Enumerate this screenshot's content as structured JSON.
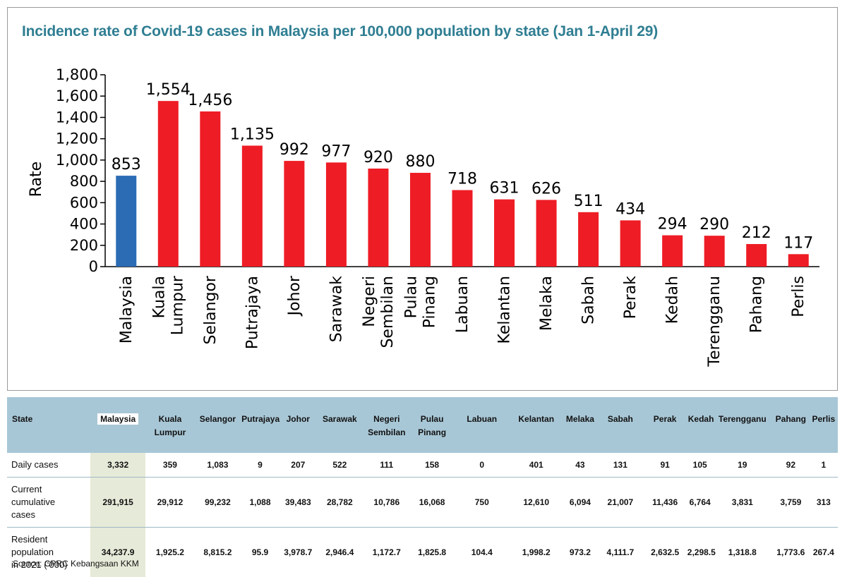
{
  "title": "Incidence rate of Covid-19 cases in Malaysia per 100,000 population by state (Jan 1-April 29)",
  "chart_data": {
    "type": "bar",
    "title": "Incidence rate of Covid-19 cases in Malaysia per 100,000 population by state (Jan 1-April 29)",
    "ylabel": "Rate",
    "xlabel": "",
    "ylim": [
      0,
      1800
    ],
    "yticks": [
      "0",
      "200",
      "400",
      "600",
      "800",
      "1,000",
      "1,200",
      "1,400",
      "1,600",
      "1,800"
    ],
    "categories": [
      [
        "Malaysia"
      ],
      [
        "Kuala",
        "Lumpur"
      ],
      [
        "Selangor"
      ],
      [
        "Putrajaya"
      ],
      [
        "Johor"
      ],
      [
        "Sarawak"
      ],
      [
        "Negeri",
        "Sembilan"
      ],
      [
        "Pulau",
        "Pinang"
      ],
      [
        "Labuan"
      ],
      [
        "Kelantan"
      ],
      [
        "Melaka"
      ],
      [
        "Sabah"
      ],
      [
        "Perak"
      ],
      [
        "Kedah"
      ],
      [
        "Terengganu"
      ],
      [
        "Pahang"
      ],
      [
        "Perlis"
      ]
    ],
    "values": [
      853,
      1554,
      1456,
      1135,
      992,
      977,
      920,
      880,
      718,
      631,
      626,
      511,
      434,
      294,
      290,
      212,
      117
    ],
    "value_labels": [
      "853",
      "1,554",
      "1,456",
      "1,135",
      "992",
      "977",
      "920",
      "880",
      "718",
      "631",
      "626",
      "511",
      "434",
      "294",
      "290",
      "212",
      "117"
    ],
    "colors": {
      "national": "#2b6cb5",
      "state": "#ee1c25"
    },
    "grid": false,
    "legend": "none"
  },
  "table": {
    "header_label": "State",
    "columns": [
      [
        "Malaysia"
      ],
      [
        "Kuala",
        "Lumpur"
      ],
      [
        "Selangor"
      ],
      [
        "Putrajaya"
      ],
      [
        "Johor"
      ],
      [
        "Sarawak"
      ],
      [
        "Negeri",
        "Sembilan"
      ],
      [
        "Pulau",
        "Pinang"
      ],
      [
        "Labuan"
      ],
      [
        "Kelantan"
      ],
      [
        "Melaka"
      ],
      [
        "Sabah"
      ],
      [
        "Perak"
      ],
      [
        "Kedah"
      ],
      [
        "Terengganu"
      ],
      [
        "Pahang"
      ],
      [
        "Perlis"
      ]
    ],
    "rows": [
      {
        "label": [
          "Daily cases"
        ],
        "values": [
          "3,332",
          "359",
          "1,083",
          "9",
          "207",
          "522",
          "111",
          "158",
          "0",
          "401",
          "43",
          "131",
          "91",
          "105",
          "19",
          "92",
          "1"
        ]
      },
      {
        "label": [
          "Current",
          "cumulative",
          "cases"
        ],
        "values": [
          "291,915",
          "29,912",
          "99,232",
          "1,088",
          "39,483",
          "28,782",
          "10,786",
          "16,068",
          "750",
          "12,610",
          "6,094",
          "21,007",
          "11,436",
          "6,764",
          "3,831",
          "3,759",
          "313"
        ]
      },
      {
        "label": [
          "Resident",
          "population",
          "in 2021 (‘000)"
        ],
        "values": [
          "34,237.9",
          "1,925.2",
          "8,815.2",
          "95.9",
          "3,978.7",
          "2,946.4",
          "1,172.7",
          "1,825.8",
          "104.4",
          "1,998.2",
          "973.2",
          "4,111.7",
          "2,632.5",
          "2,298.5",
          "1,318.8",
          "1,773.6",
          "267.4"
        ]
      }
    ],
    "colors": {
      "header_bg": "#a8c7d6",
      "highlight_bg": "#e6ead8"
    }
  },
  "source": "Source: CPRC Kebangsaan KKM"
}
